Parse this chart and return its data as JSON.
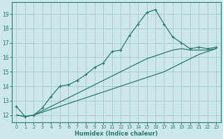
{
  "xlabel": "Humidex (Indice chaleur)",
  "background_color": "#cce8ea",
  "grid_color": "#aacdd0",
  "line_color": "#2a7a70",
  "x_hours": [
    0,
    1,
    2,
    3,
    4,
    5,
    6,
    7,
    8,
    9,
    10,
    11,
    12,
    13,
    14,
    15,
    16,
    17,
    18,
    19,
    20,
    21,
    22,
    23
  ],
  "line_main": [
    12.6,
    11.9,
    12.0,
    12.5,
    13.3,
    14.0,
    14.1,
    14.4,
    14.8,
    15.3,
    15.6,
    16.4,
    16.5,
    17.5,
    18.3,
    19.1,
    19.3,
    18.3,
    17.4,
    17.0,
    16.6,
    16.7,
    16.6,
    16.7
  ],
  "line_low": [
    12.0,
    11.9,
    12.0,
    12.2,
    12.4,
    12.6,
    12.8,
    13.0,
    13.2,
    13.4,
    13.6,
    13.8,
    14.0,
    14.2,
    14.4,
    14.6,
    14.8,
    15.0,
    15.3,
    15.6,
    15.9,
    16.2,
    16.4,
    16.6
  ],
  "line_mid": [
    12.0,
    11.9,
    12.0,
    12.3,
    12.6,
    12.9,
    13.2,
    13.5,
    13.8,
    14.1,
    14.4,
    14.7,
    15.0,
    15.3,
    15.6,
    15.9,
    16.1,
    16.3,
    16.5,
    16.6,
    16.5,
    16.5,
    16.5,
    16.6
  ],
  "ylim": [
    11.5,
    19.8
  ],
  "yticks": [
    12,
    13,
    14,
    15,
    16,
    17,
    18,
    19
  ],
  "xlim": [
    -0.5,
    23.5
  ],
  "xticks": [
    0,
    1,
    2,
    3,
    4,
    5,
    6,
    7,
    8,
    9,
    10,
    11,
    12,
    13,
    14,
    15,
    16,
    17,
    18,
    19,
    20,
    21,
    22,
    23
  ]
}
